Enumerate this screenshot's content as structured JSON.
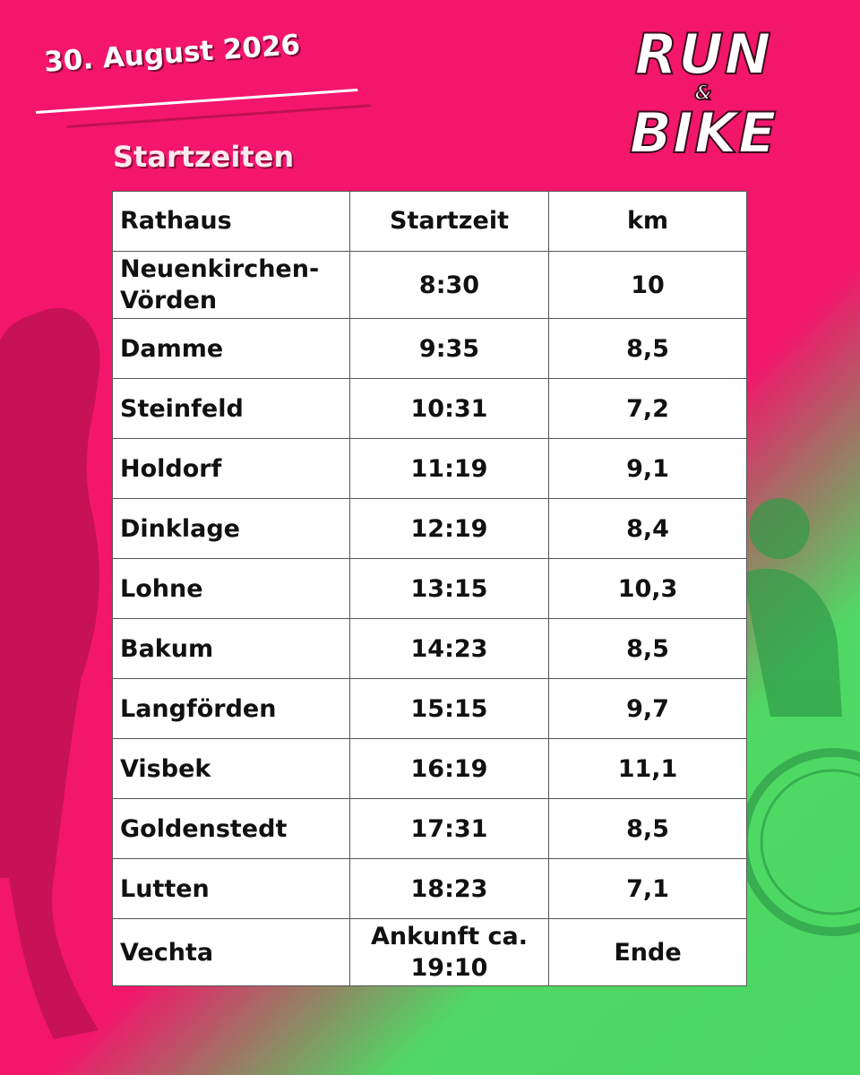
{
  "date": "30. August 2026",
  "logo": {
    "line1": "RUN",
    "amp": "&",
    "line2": "BIKE"
  },
  "subtitle": "Startzeiten",
  "table": {
    "header": [
      "Rathaus",
      "Startzeit",
      "km"
    ],
    "rows": [
      [
        "Neuenkirchen-Vörden",
        "8:30",
        "10"
      ],
      [
        "Damme",
        "9:35",
        "8,5"
      ],
      [
        "Steinfeld",
        "10:31",
        "7,2"
      ],
      [
        "Holdorf",
        "11:19",
        "9,1"
      ],
      [
        "Dinklage",
        "12:19",
        "8,4"
      ],
      [
        "Lohne",
        "13:15",
        "10,3"
      ],
      [
        "Bakum",
        "14:23",
        "8,5"
      ],
      [
        "Langförden",
        "15:15",
        "9,7"
      ],
      [
        "Visbek",
        "16:19",
        "11,1"
      ],
      [
        "Goldenstedt",
        "17:31",
        "8,5"
      ],
      [
        "Lutten",
        "18:23",
        "7,1"
      ],
      [
        "Vechta",
        "Ankunft ca. 19:10",
        "Ende"
      ]
    ]
  }
}
